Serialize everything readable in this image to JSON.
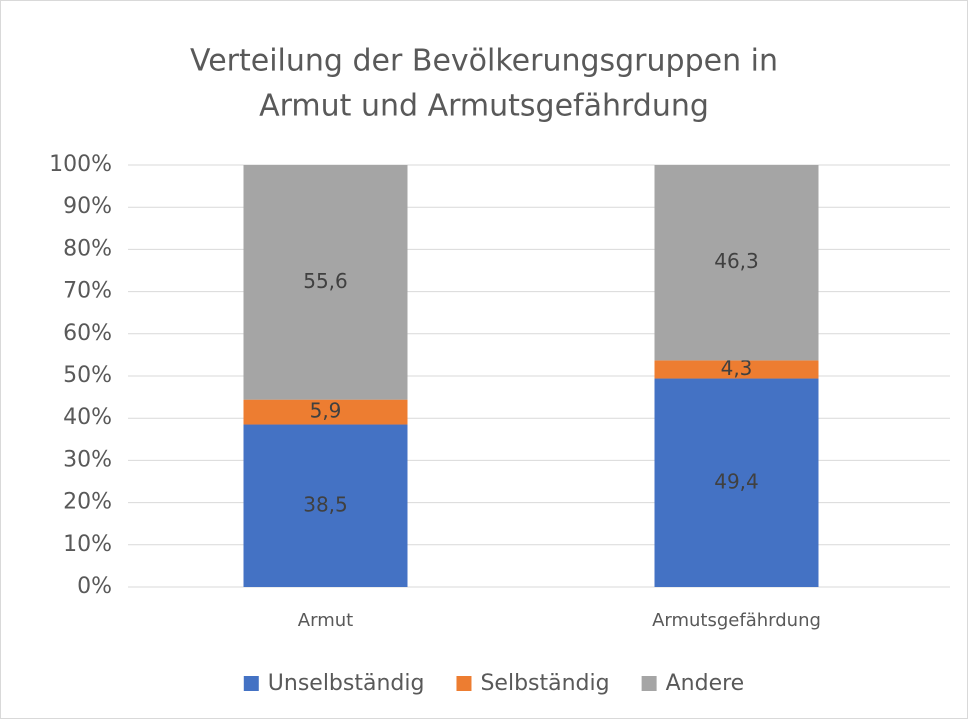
{
  "chart_data": {
    "type": "stacked_bar",
    "title": [
      "Verteilung der Bevölkerungsgruppen in",
      "Armut und Armutsgefährdung"
    ],
    "categories": [
      "Armut",
      "Armutsgefährdung"
    ],
    "series": [
      {
        "name": "Unselbständig",
        "color": "#4472c4",
        "values": [
          38.5,
          49.4
        ],
        "value_labels": [
          "38,5",
          "49,4"
        ]
      },
      {
        "name": "Selbständig",
        "color": "#ed7d31",
        "values": [
          5.9,
          4.3
        ],
        "value_labels": [
          "5,9",
          "4,3"
        ]
      },
      {
        "name": "Andere",
        "color": "#a5a5a5",
        "values": [
          55.6,
          46.3
        ],
        "value_labels": [
          "55,6",
          "46,3"
        ]
      }
    ],
    "ylim": [
      0,
      100
    ],
    "yticks": [
      {
        "value": 0,
        "label": "0%"
      },
      {
        "value": 10,
        "label": "10%"
      },
      {
        "value": 20,
        "label": "20%"
      },
      {
        "value": 30,
        "label": "30%"
      },
      {
        "value": 40,
        "label": "40%"
      },
      {
        "value": 50,
        "label": "50%"
      },
      {
        "value": 60,
        "label": "60%"
      },
      {
        "value": 70,
        "label": "70%"
      },
      {
        "value": 80,
        "label": "80%"
      },
      {
        "value": 90,
        "label": "90%"
      },
      {
        "value": 100,
        "label": "100%"
      }
    ],
    "grid": true,
    "legend": "bottom"
  }
}
